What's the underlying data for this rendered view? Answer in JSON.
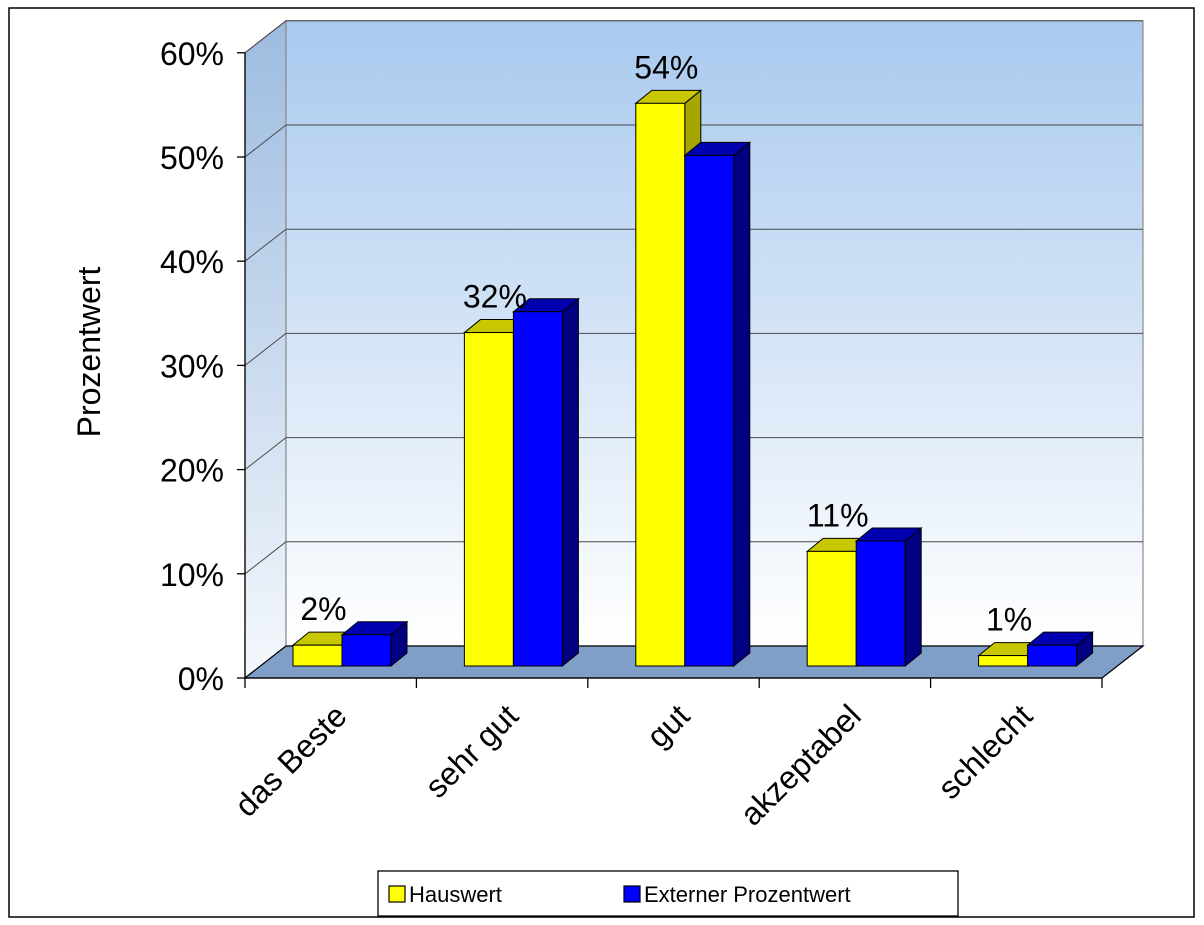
{
  "chart_data": {
    "type": "bar",
    "title": "",
    "xlabel": "",
    "ylabel": "Prozentwert",
    "categories": [
      "das Beste",
      "sehr gut",
      "gut",
      "akzeptabel",
      "schlecht"
    ],
    "series": [
      {
        "name": "Hauswert",
        "values": [
          2,
          32,
          54,
          11,
          1
        ],
        "data_labels": [
          "2%",
          "32%",
          "54%",
          "11%",
          "1%"
        ],
        "color": "#ffff00",
        "side_color": "#a6a600",
        "top_color": "#c8c800"
      },
      {
        "name": "Externer Prozentwert",
        "values": [
          3,
          34,
          49,
          12,
          2
        ],
        "color": "#0000ff",
        "side_color": "#000080",
        "top_color": "#0000b0"
      }
    ],
    "ylim": [
      0,
      60
    ],
    "yticks": [
      0,
      10,
      20,
      30,
      40,
      50,
      60
    ],
    "ytick_labels": [
      "0%",
      "10%",
      "20%",
      "30%",
      "40%",
      "50%",
      "60%"
    ],
    "grid": true,
    "style": "3d-clustered-column",
    "legend_position": "bottom",
    "backwall_gradient": [
      "#a9c9ee",
      "#ffffff"
    ],
    "floor_color": "#7f9fc8"
  }
}
